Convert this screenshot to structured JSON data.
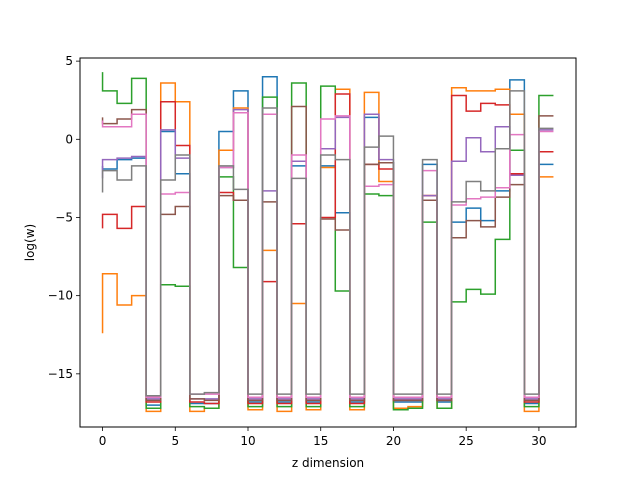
{
  "chart_data": {
    "type": "line",
    "drawstyle": "steps",
    "title": "",
    "xlabel": "z dimension",
    "ylabel": "log(w)",
    "xlim": [
      -1.55,
      32.55
    ],
    "ylim": [
      -18.4,
      5.2
    ],
    "xticks": [
      0,
      5,
      10,
      15,
      20,
      25,
      30
    ],
    "yticks": [
      5,
      0,
      -5,
      -10,
      -15
    ],
    "ytick_labels": [
      "5",
      "0",
      "−5",
      "−10",
      "−15"
    ],
    "grid": false,
    "legend": "none",
    "x": [
      0,
      1,
      2,
      3,
      4,
      5,
      6,
      7,
      8,
      9,
      10,
      11,
      12,
      13,
      14,
      15,
      16,
      17,
      18,
      19,
      20,
      21,
      22,
      23,
      24,
      25,
      26,
      27,
      28,
      29,
      30,
      31
    ],
    "series": [
      {
        "color": "#1f77b4",
        "values": [
          -1.7,
          -1.9,
          -1.3,
          -1.2,
          -17.0,
          0.5,
          -2.2,
          -16.9,
          -16.9,
          0.5,
          3.1,
          -16.8,
          4.0,
          -16.8,
          -1.7,
          -16.8,
          -1.7,
          -4.7,
          -16.8,
          1.4,
          -1.5,
          -16.8,
          -16.8,
          -1.6,
          -16.8,
          -5.3,
          -4.4,
          -5.2,
          -3.3,
          3.8,
          -16.9,
          -1.6
        ]
      },
      {
        "color": "#ff7f0e",
        "values": [
          -12.4,
          -8.6,
          -10.6,
          -10.0,
          -17.4,
          3.6,
          2.4,
          -17.4,
          -17.2,
          -0.7,
          2.0,
          -17.3,
          -7.1,
          -17.4,
          -10.5,
          -17.3,
          -1.8,
          3.2,
          -17.3,
          3.0,
          -2.7,
          -17.2,
          -17.1,
          -3.6,
          -17.2,
          3.3,
          3.1,
          3.1,
          3.2,
          1.6,
          -17.4,
          -2.4
        ]
      },
      {
        "color": "#2ca02c",
        "values": [
          4.3,
          3.1,
          2.3,
          3.9,
          -17.2,
          -9.3,
          -9.4,
          -17.1,
          -17.2,
          -2.4,
          -8.2,
          -17.1,
          2.7,
          -17.1,
          3.6,
          -17.1,
          3.4,
          -9.7,
          -17.1,
          -3.5,
          -3.6,
          -17.3,
          -17.2,
          -5.3,
          -17.2,
          -10.4,
          -9.6,
          -9.9,
          -6.4,
          -0.7,
          -17.1,
          2.8
        ]
      },
      {
        "color": "#d62728",
        "values": [
          -5.7,
          -4.8,
          -5.7,
          -4.3,
          -16.8,
          2.4,
          -0.4,
          -16.8,
          -16.9,
          -3.4,
          -3.9,
          -16.9,
          -9.1,
          -16.9,
          -5.4,
          -16.9,
          -5.0,
          2.9,
          -16.9,
          -1.6,
          -1.9,
          -16.7,
          -16.7,
          -3.6,
          -16.7,
          2.8,
          1.8,
          2.3,
          2.2,
          -2.2,
          -16.8,
          -0.8
        ]
      },
      {
        "color": "#9467bd",
        "values": [
          -2.5,
          -1.3,
          -1.2,
          -1.1,
          -16.6,
          0.6,
          -1.2,
          -16.6,
          -16.6,
          -1.8,
          1.9,
          -16.6,
          -3.3,
          -16.6,
          -1.4,
          -16.6,
          -0.6,
          1.4,
          -16.6,
          1.6,
          -1.3,
          -16.6,
          -16.6,
          -3.6,
          -16.6,
          -1.4,
          0.1,
          -0.8,
          0.8,
          -2.3,
          -16.6,
          0.6
        ]
      },
      {
        "color": "#8c564b",
        "values": [
          1.4,
          1.0,
          1.3,
          1.9,
          -16.7,
          -4.8,
          -4.3,
          -16.6,
          -16.7,
          -3.6,
          -3.9,
          -16.7,
          -4.0,
          -16.7,
          2.1,
          -16.7,
          -5.1,
          -5.8,
          -16.7,
          -1.6,
          -1.5,
          -16.7,
          -16.7,
          -3.9,
          -16.7,
          -6.3,
          -5.2,
          -5.6,
          -3.7,
          -2.9,
          -16.7,
          1.5
        ]
      },
      {
        "color": "#e377c2",
        "values": [
          1.2,
          0.8,
          0.8,
          1.6,
          -16.5,
          -3.5,
          -3.4,
          -16.3,
          -16.3,
          -1.8,
          1.7,
          -16.5,
          1.6,
          -16.5,
          -1.0,
          -16.5,
          1.3,
          1.5,
          -16.5,
          -3.0,
          -2.9,
          -16.5,
          -16.5,
          -2.0,
          -16.5,
          -4.2,
          -3.8,
          -3.7,
          -3.1,
          0.3,
          -16.5,
          0.5
        ]
      },
      {
        "color": "#7f7f7f",
        "values": [
          -3.4,
          -2.0,
          -2.6,
          -1.7,
          -16.4,
          -2.6,
          -1.0,
          -16.3,
          -16.2,
          -1.7,
          -3.2,
          -16.3,
          2.0,
          -16.3,
          -2.5,
          -16.3,
          -1.0,
          -1.3,
          -16.3,
          -0.5,
          0.2,
          -16.3,
          -16.3,
          -1.3,
          -16.3,
          -4.0,
          -2.7,
          -3.3,
          -0.6,
          3.1,
          -16.3,
          0.7
        ]
      }
    ]
  }
}
